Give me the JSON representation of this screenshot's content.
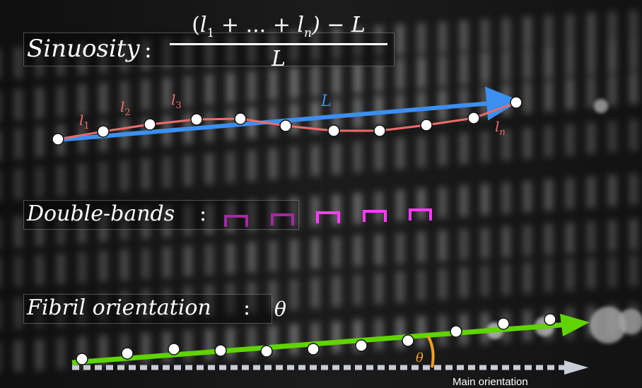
{
  "colors": {
    "segment": "#ef6a6a",
    "chord": "#3b8ff0",
    "bands": "#ff3bff",
    "orientation": "#5fd400",
    "angle": "#f0a020",
    "main": "#c8ccd6"
  },
  "sinuosity": {
    "label": "Sinuosity",
    "colon": ":",
    "numerator_open": "(",
    "numerator_l": "l",
    "sub_1": "1",
    "numerator_mid": "+ ... +",
    "sub_n": "n",
    "numerator_close": ") − L",
    "denominator": "L",
    "segment_labels": [
      {
        "base": "l",
        "sub": "1"
      },
      {
        "base": "l",
        "sub": "2"
      },
      {
        "base": "l",
        "sub": "3"
      },
      {
        "base": "l",
        "sub": "n"
      }
    ],
    "chord_label": "L"
  },
  "double_bands": {
    "label": "Double-bands",
    "colon": ":",
    "count": 5
  },
  "fibril_orientation": {
    "label": "Fibril orientation",
    "colon": ":",
    "symbol": "θ",
    "angle_label": "θ",
    "main_orientation": "Main orientation"
  }
}
